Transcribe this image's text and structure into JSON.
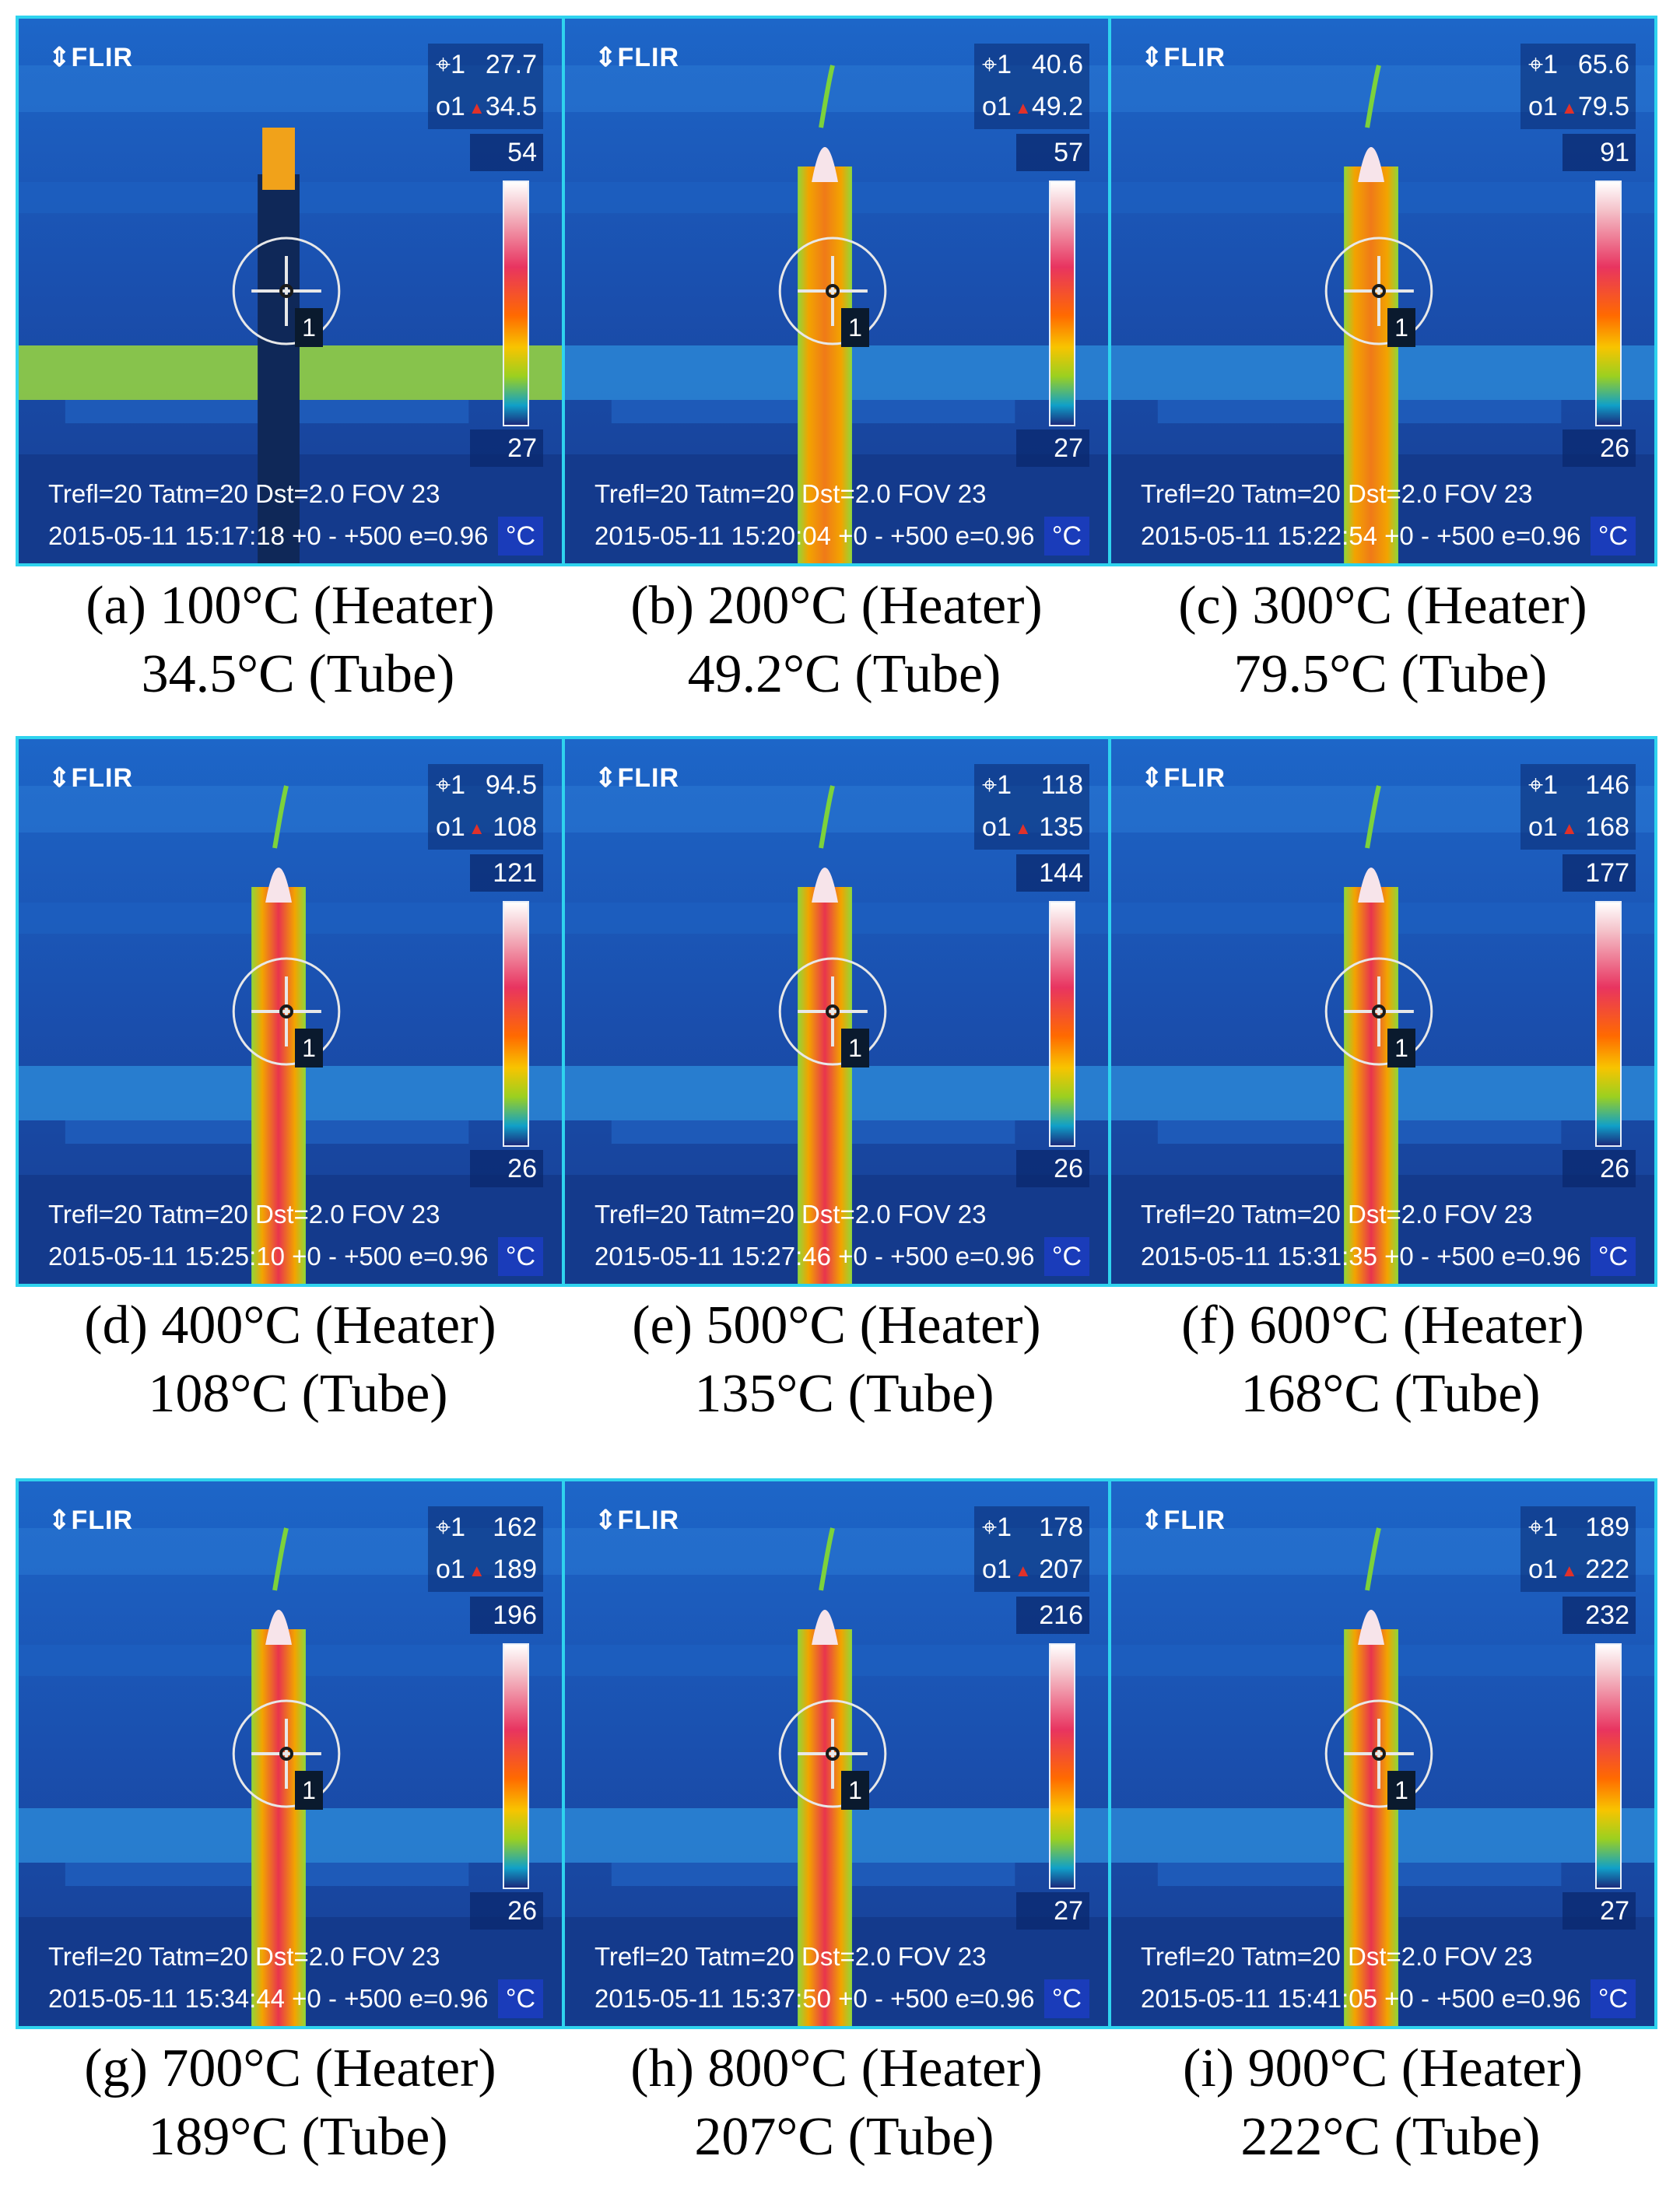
{
  "panels": [
    {
      "logo": "FLIR",
      "spot_value": "27.7",
      "box_value": "34.5",
      "scale_max": "54",
      "scale_min": "27",
      "info_line1": "Trefl=20 Tatm=20 Dst=2.0 FOV 23",
      "info_line2": "2015-05-11 15:17:18 +0 -  +500 e=0.96",
      "unit": "°C",
      "marker": "1",
      "caption_line1": "(a) 100°C (Heater)",
      "caption_line2": "34.5°C (Tube)",
      "tube_heat": 0.12
    },
    {
      "logo": "FLIR",
      "spot_value": "40.6",
      "box_value": "49.2",
      "scale_max": "57",
      "scale_min": "27",
      "info_line1": "Trefl=20 Tatm=20 Dst=2.0 FOV 23",
      "info_line2": "2015-05-11 15:20:04 +0 -  +500 e=0.96",
      "unit": "°C",
      "marker": "1",
      "caption_line1": "(b) 200°C (Heater)",
      "caption_line2": "49.2°C (Tube)",
      "tube_heat": 0.35
    },
    {
      "logo": "FLIR",
      "spot_value": "65.6",
      "box_value": "79.5",
      "scale_max": "91",
      "scale_min": "26",
      "info_line1": "Trefl=20 Tatm=20 Dst=2.0 FOV 23",
      "info_line2": "2015-05-11 15:22:54 +0 -  +500 e=0.96",
      "unit": "°C",
      "marker": "1",
      "caption_line1": "(c) 300°C (Heater)",
      "caption_line2": "79.5°C (Tube)",
      "tube_heat": 0.55
    },
    {
      "logo": "FLIR",
      "spot_value": "94.5",
      "box_value": "108",
      "scale_max": "121",
      "scale_min": "26",
      "info_line1": "Trefl=20 Tatm=20 Dst=2.0 FOV 23",
      "info_line2": "2015-05-11 15:25:10 +0 -  +500 e=0.96",
      "unit": "°C",
      "marker": "1",
      "caption_line1": "(d) 400°C (Heater)",
      "caption_line2": "108°C (Tube)",
      "tube_heat": 0.7
    },
    {
      "logo": "FLIR",
      "spot_value": "118",
      "box_value": "135",
      "scale_max": "144",
      "scale_min": "26",
      "info_line1": "Trefl=20 Tatm=20 Dst=2.0 FOV 23",
      "info_line2": "2015-05-11 15:27:46 +0 -  +500 e=0.96",
      "unit": "°C",
      "marker": "1",
      "caption_line1": "(e) 500°C (Heater)",
      "caption_line2": "135°C (Tube)",
      "tube_heat": 0.8
    },
    {
      "logo": "FLIR",
      "spot_value": "146",
      "box_value": "168",
      "scale_max": "177",
      "scale_min": "26",
      "info_line1": "Trefl=20 Tatm=20 Dst=2.0 FOV 23",
      "info_line2": "2015-05-11 15:31:35 +0 -  +500 e=0.96",
      "unit": "°C",
      "marker": "1",
      "caption_line1": "(f) 600°C (Heater)",
      "caption_line2": "168°C (Tube)",
      "tube_heat": 0.88
    },
    {
      "logo": "FLIR",
      "spot_value": "162",
      "box_value": "189",
      "scale_max": "196",
      "scale_min": "26",
      "info_line1": "Trefl=20 Tatm=20 Dst=2.0 FOV 23",
      "info_line2": "2015-05-11 15:34:44 +0 -  +500 e=0.96",
      "unit": "°C",
      "marker": "1",
      "caption_line1": "(g) 700°C (Heater)",
      "caption_line2": "189°C (Tube)",
      "tube_heat": 0.92
    },
    {
      "logo": "FLIR",
      "spot_value": "178",
      "box_value": "207",
      "scale_max": "216",
      "scale_min": "27",
      "info_line1": "Trefl=20 Tatm=20 Dst=2.0 FOV 23",
      "info_line2": "2015-05-11 15:37:50 +0 -  +500 e=0.96",
      "unit": "°C",
      "marker": "1",
      "caption_line1": "(h) 800°C (Heater)",
      "caption_line2": "207°C (Tube)",
      "tube_heat": 0.95
    },
    {
      "logo": "FLIR",
      "spot_value": "189",
      "box_value": "222",
      "scale_max": "232",
      "scale_min": "27",
      "info_line1": "Trefl=20 Tatm=20 Dst=2.0 FOV 23",
      "info_line2": "2015-05-11 15:41:05 +0 -  +500 e=0.96",
      "unit": "°C",
      "marker": "1",
      "caption_line1": "(i) 900°C (Heater)",
      "caption_line2": "222°C (Tube)",
      "tube_heat": 1.0
    }
  ],
  "colors": {
    "frame_border": "#2fd3ee",
    "background_blue": "#1c56b8",
    "tube_hot": "#e8344e"
  }
}
